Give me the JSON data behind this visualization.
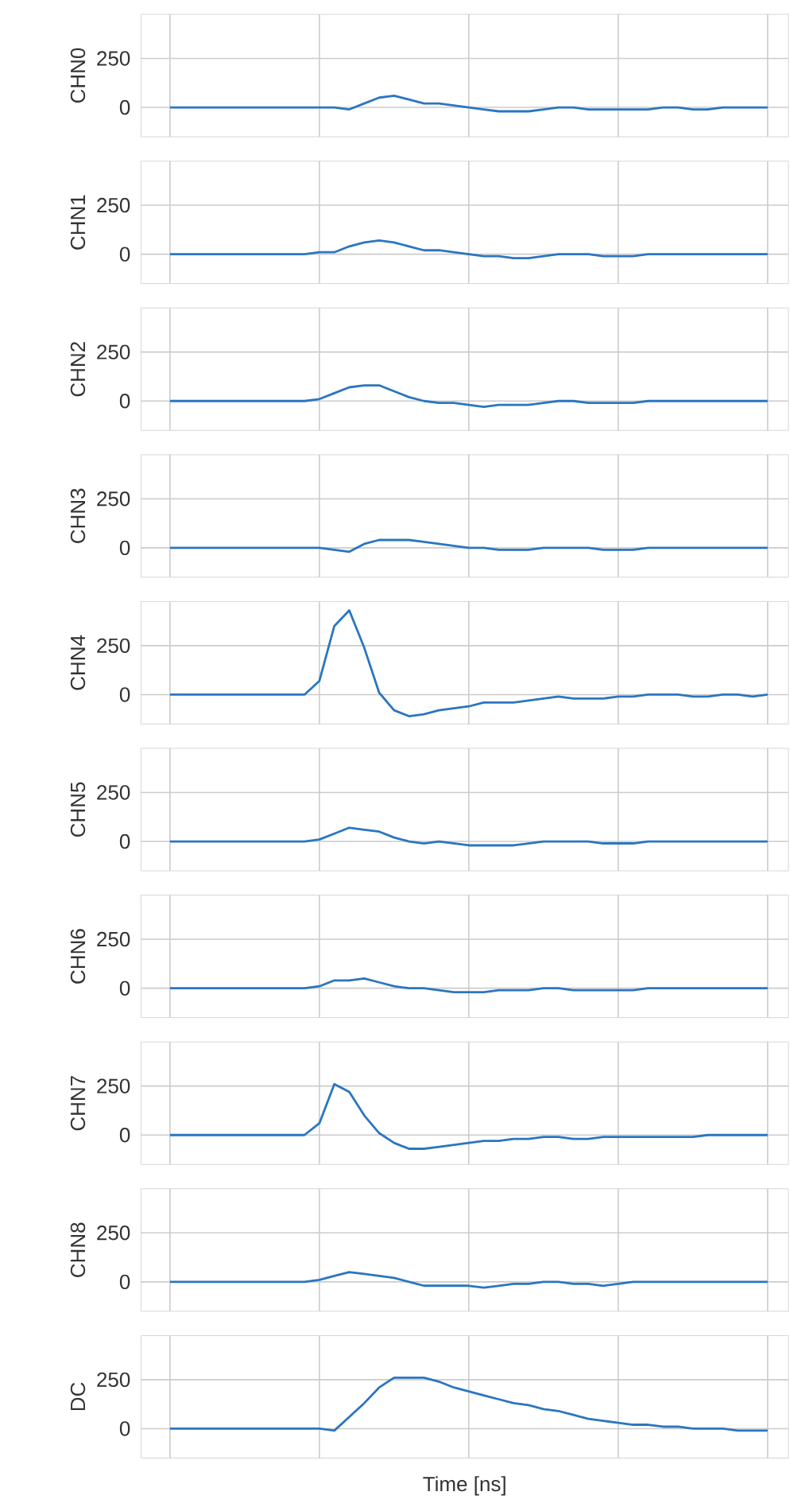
{
  "chart_data": [
    {
      "type": "line",
      "ylabel": "CHN0",
      "color": "#2a76c0",
      "ylim": [
        -150,
        475
      ],
      "yticks": [
        0,
        250
      ],
      "grid": true,
      "tick_labels": "y",
      "categories": [
        null,
        null,
        null,
        null,
        null,
        null,
        null,
        null,
        null,
        null,
        null,
        null,
        null,
        null,
        null,
        null,
        null,
        null,
        null,
        null,
        null,
        null,
        null,
        null,
        null,
        null,
        null,
        null,
        null,
        null,
        null,
        null,
        null,
        null,
        null,
        null,
        null,
        null,
        null,
        null,
        null
      ],
      "values": [
        0,
        0,
        0,
        0,
        0,
        0,
        0,
        0,
        0,
        0,
        0,
        0,
        -10,
        20,
        50,
        60,
        40,
        20,
        20,
        10,
        0,
        -10,
        -20,
        -20,
        -20,
        -10,
        0,
        0,
        -10,
        -10,
        -10,
        -10,
        -10,
        0,
        0,
        -10,
        -10,
        0,
        0,
        0,
        0
      ]
    },
    {
      "type": "line",
      "ylabel": "CHN1",
      "color": "#2a76c0",
      "ylim": [
        -150,
        475
      ],
      "yticks": [
        0,
        250
      ],
      "grid": true,
      "tick_labels": "y",
      "categories": [
        null,
        null,
        null,
        null,
        null,
        null,
        null,
        null,
        null,
        null,
        null,
        null,
        null,
        null,
        null,
        null,
        null,
        null,
        null,
        null,
        null,
        null,
        null,
        null,
        null,
        null,
        null,
        null,
        null,
        null,
        null,
        null,
        null,
        null,
        null,
        null,
        null,
        null,
        null,
        null,
        null
      ],
      "values": [
        0,
        0,
        0,
        0,
        0,
        0,
        0,
        0,
        0,
        0,
        10,
        10,
        40,
        60,
        70,
        60,
        40,
        20,
        20,
        10,
        0,
        -10,
        -10,
        -20,
        -20,
        -10,
        0,
        0,
        0,
        -10,
        -10,
        -10,
        0,
        0,
        0,
        0,
        0,
        0,
        0,
        0,
        0
      ]
    },
    {
      "type": "line",
      "ylabel": "CHN2",
      "color": "#2a76c0",
      "ylim": [
        -150,
        475
      ],
      "yticks": [
        0,
        250
      ],
      "grid": true,
      "tick_labels": "y",
      "categories": [
        null,
        null,
        null,
        null,
        null,
        null,
        null,
        null,
        null,
        null,
        null,
        null,
        null,
        null,
        null,
        null,
        null,
        null,
        null,
        null,
        null,
        null,
        null,
        null,
        null,
        null,
        null,
        null,
        null,
        null,
        null,
        null,
        null,
        null,
        null,
        null,
        null,
        null,
        null,
        null,
        null
      ],
      "values": [
        0,
        0,
        0,
        0,
        0,
        0,
        0,
        0,
        0,
        0,
        10,
        40,
        70,
        80,
        80,
        50,
        20,
        0,
        -10,
        -10,
        -20,
        -30,
        -20,
        -20,
        -20,
        -10,
        0,
        0,
        -10,
        -10,
        -10,
        -10,
        0,
        0,
        0,
        0,
        0,
        0,
        0,
        0,
        0
      ]
    },
    {
      "type": "line",
      "ylabel": "CHN3",
      "color": "#2a76c0",
      "ylim": [
        -150,
        475
      ],
      "yticks": [
        0,
        250
      ],
      "grid": true,
      "tick_labels": "y",
      "categories": [
        null,
        null,
        null,
        null,
        null,
        null,
        null,
        null,
        null,
        null,
        null,
        null,
        null,
        null,
        null,
        null,
        null,
        null,
        null,
        null,
        null,
        null,
        null,
        null,
        null,
        null,
        null,
        null,
        null,
        null,
        null,
        null,
        null,
        null,
        null,
        null,
        null,
        null,
        null,
        null,
        null
      ],
      "values": [
        0,
        0,
        0,
        0,
        0,
        0,
        0,
        0,
        0,
        0,
        0,
        -10,
        -20,
        20,
        40,
        40,
        40,
        30,
        20,
        10,
        0,
        0,
        -10,
        -10,
        -10,
        0,
        0,
        0,
        0,
        -10,
        -10,
        -10,
        0,
        0,
        0,
        0,
        0,
        0,
        0,
        0,
        0
      ]
    },
    {
      "type": "line",
      "ylabel": "CHN4",
      "color": "#2a76c0",
      "ylim": [
        -150,
        475
      ],
      "yticks": [
        0,
        250
      ],
      "grid": true,
      "tick_labels": "y",
      "categories": [
        null,
        null,
        null,
        null,
        null,
        null,
        null,
        null,
        null,
        null,
        null,
        null,
        null,
        null,
        null,
        null,
        null,
        null,
        null,
        null,
        null,
        null,
        null,
        null,
        null,
        null,
        null,
        null,
        null,
        null,
        null,
        null,
        null,
        null,
        null,
        null,
        null,
        null,
        null,
        null,
        null
      ],
      "values": [
        0,
        0,
        0,
        0,
        0,
        0,
        0,
        0,
        0,
        0,
        70,
        350,
        430,
        240,
        10,
        -80,
        -110,
        -100,
        -80,
        -70,
        -60,
        -40,
        -40,
        -40,
        -30,
        -20,
        -10,
        -20,
        -20,
        -20,
        -10,
        -10,
        0,
        0,
        0,
        -10,
        -10,
        0,
        0,
        -10,
        0
      ]
    },
    {
      "type": "line",
      "ylabel": "CHN5",
      "color": "#2a76c0",
      "ylim": [
        -150,
        475
      ],
      "yticks": [
        0,
        250
      ],
      "grid": true,
      "tick_labels": "y",
      "categories": [
        null,
        null,
        null,
        null,
        null,
        null,
        null,
        null,
        null,
        null,
        null,
        null,
        null,
        null,
        null,
        null,
        null,
        null,
        null,
        null,
        null,
        null,
        null,
        null,
        null,
        null,
        null,
        null,
        null,
        null,
        null,
        null,
        null,
        null,
        null,
        null,
        null,
        null,
        null,
        null,
        null
      ],
      "values": [
        0,
        0,
        0,
        0,
        0,
        0,
        0,
        0,
        0,
        0,
        10,
        40,
        70,
        60,
        50,
        20,
        0,
        -10,
        0,
        -10,
        -20,
        -20,
        -20,
        -20,
        -10,
        0,
        0,
        0,
        0,
        -10,
        -10,
        -10,
        0,
        0,
        0,
        0,
        0,
        0,
        0,
        0,
        0
      ]
    },
    {
      "type": "line",
      "ylabel": "CHN6",
      "color": "#2a76c0",
      "ylim": [
        -150,
        475
      ],
      "yticks": [
        0,
        250
      ],
      "grid": true,
      "tick_labels": "y",
      "categories": [
        null,
        null,
        null,
        null,
        null,
        null,
        null,
        null,
        null,
        null,
        null,
        null,
        null,
        null,
        null,
        null,
        null,
        null,
        null,
        null,
        null,
        null,
        null,
        null,
        null,
        null,
        null,
        null,
        null,
        null,
        null,
        null,
        null,
        null,
        null,
        null,
        null,
        null,
        null,
        null,
        null
      ],
      "values": [
        0,
        0,
        0,
        0,
        0,
        0,
        0,
        0,
        0,
        0,
        10,
        40,
        40,
        50,
        30,
        10,
        0,
        0,
        -10,
        -20,
        -20,
        -20,
        -10,
        -10,
        -10,
        0,
        0,
        -10,
        -10,
        -10,
        -10,
        -10,
        0,
        0,
        0,
        0,
        0,
        0,
        0,
        0,
        0
      ]
    },
    {
      "type": "line",
      "ylabel": "CHN7",
      "color": "#2a76c0",
      "ylim": [
        -150,
        475
      ],
      "yticks": [
        0,
        250
      ],
      "grid": true,
      "tick_labels": "y",
      "categories": [
        null,
        null,
        null,
        null,
        null,
        null,
        null,
        null,
        null,
        null,
        null,
        null,
        null,
        null,
        null,
        null,
        null,
        null,
        null,
        null,
        null,
        null,
        null,
        null,
        null,
        null,
        null,
        null,
        null,
        null,
        null,
        null,
        null,
        null,
        null,
        null,
        null,
        null,
        null,
        null,
        null
      ],
      "values": [
        0,
        0,
        0,
        0,
        0,
        0,
        0,
        0,
        0,
        0,
        60,
        260,
        220,
        100,
        10,
        -40,
        -70,
        -70,
        -60,
        -50,
        -40,
        -30,
        -30,
        -20,
        -20,
        -10,
        -10,
        -20,
        -20,
        -10,
        -10,
        -10,
        -10,
        -10,
        -10,
        -10,
        0,
        0,
        0,
        0,
        0
      ]
    },
    {
      "type": "line",
      "ylabel": "CHN8",
      "color": "#2a76c0",
      "ylim": [
        -150,
        475
      ],
      "yticks": [
        0,
        250
      ],
      "grid": true,
      "tick_labels": "y",
      "categories": [
        null,
        null,
        null,
        null,
        null,
        null,
        null,
        null,
        null,
        null,
        null,
        null,
        null,
        null,
        null,
        null,
        null,
        null,
        null,
        null,
        null,
        null,
        null,
        null,
        null,
        null,
        null,
        null,
        null,
        null,
        null,
        null,
        null,
        null,
        null,
        null,
        null,
        null,
        null,
        null,
        null
      ],
      "values": [
        0,
        0,
        0,
        0,
        0,
        0,
        0,
        0,
        0,
        0,
        10,
        30,
        50,
        40,
        30,
        20,
        0,
        -20,
        -20,
        -20,
        -20,
        -30,
        -20,
        -10,
        -10,
        0,
        0,
        -10,
        -10,
        -20,
        -10,
        0,
        0,
        0,
        0,
        0,
        0,
        0,
        0,
        0,
        0
      ]
    },
    {
      "type": "line",
      "ylabel": "DC",
      "xlabel": "Time [ns]",
      "color": "#2a76c0",
      "ylim": [
        -150,
        475
      ],
      "yticks": [
        0,
        250
      ],
      "grid": true,
      "tick_labels": "y",
      "categories": [
        null,
        null,
        null,
        null,
        null,
        null,
        null,
        null,
        null,
        null,
        null,
        null,
        null,
        null,
        null,
        null,
        null,
        null,
        null,
        null,
        null,
        null,
        null,
        null,
        null,
        null,
        null,
        null,
        null,
        null,
        null,
        null,
        null,
        null,
        null,
        null,
        null,
        null,
        null,
        null,
        null
      ],
      "values": [
        0,
        0,
        0,
        0,
        0,
        0,
        0,
        0,
        0,
        0,
        0,
        -10,
        60,
        130,
        210,
        260,
        260,
        260,
        240,
        210,
        190,
        170,
        150,
        130,
        120,
        100,
        90,
        70,
        50,
        40,
        30,
        20,
        20,
        10,
        10,
        0,
        0,
        0,
        -10,
        -10,
        -10
      ]
    }
  ]
}
